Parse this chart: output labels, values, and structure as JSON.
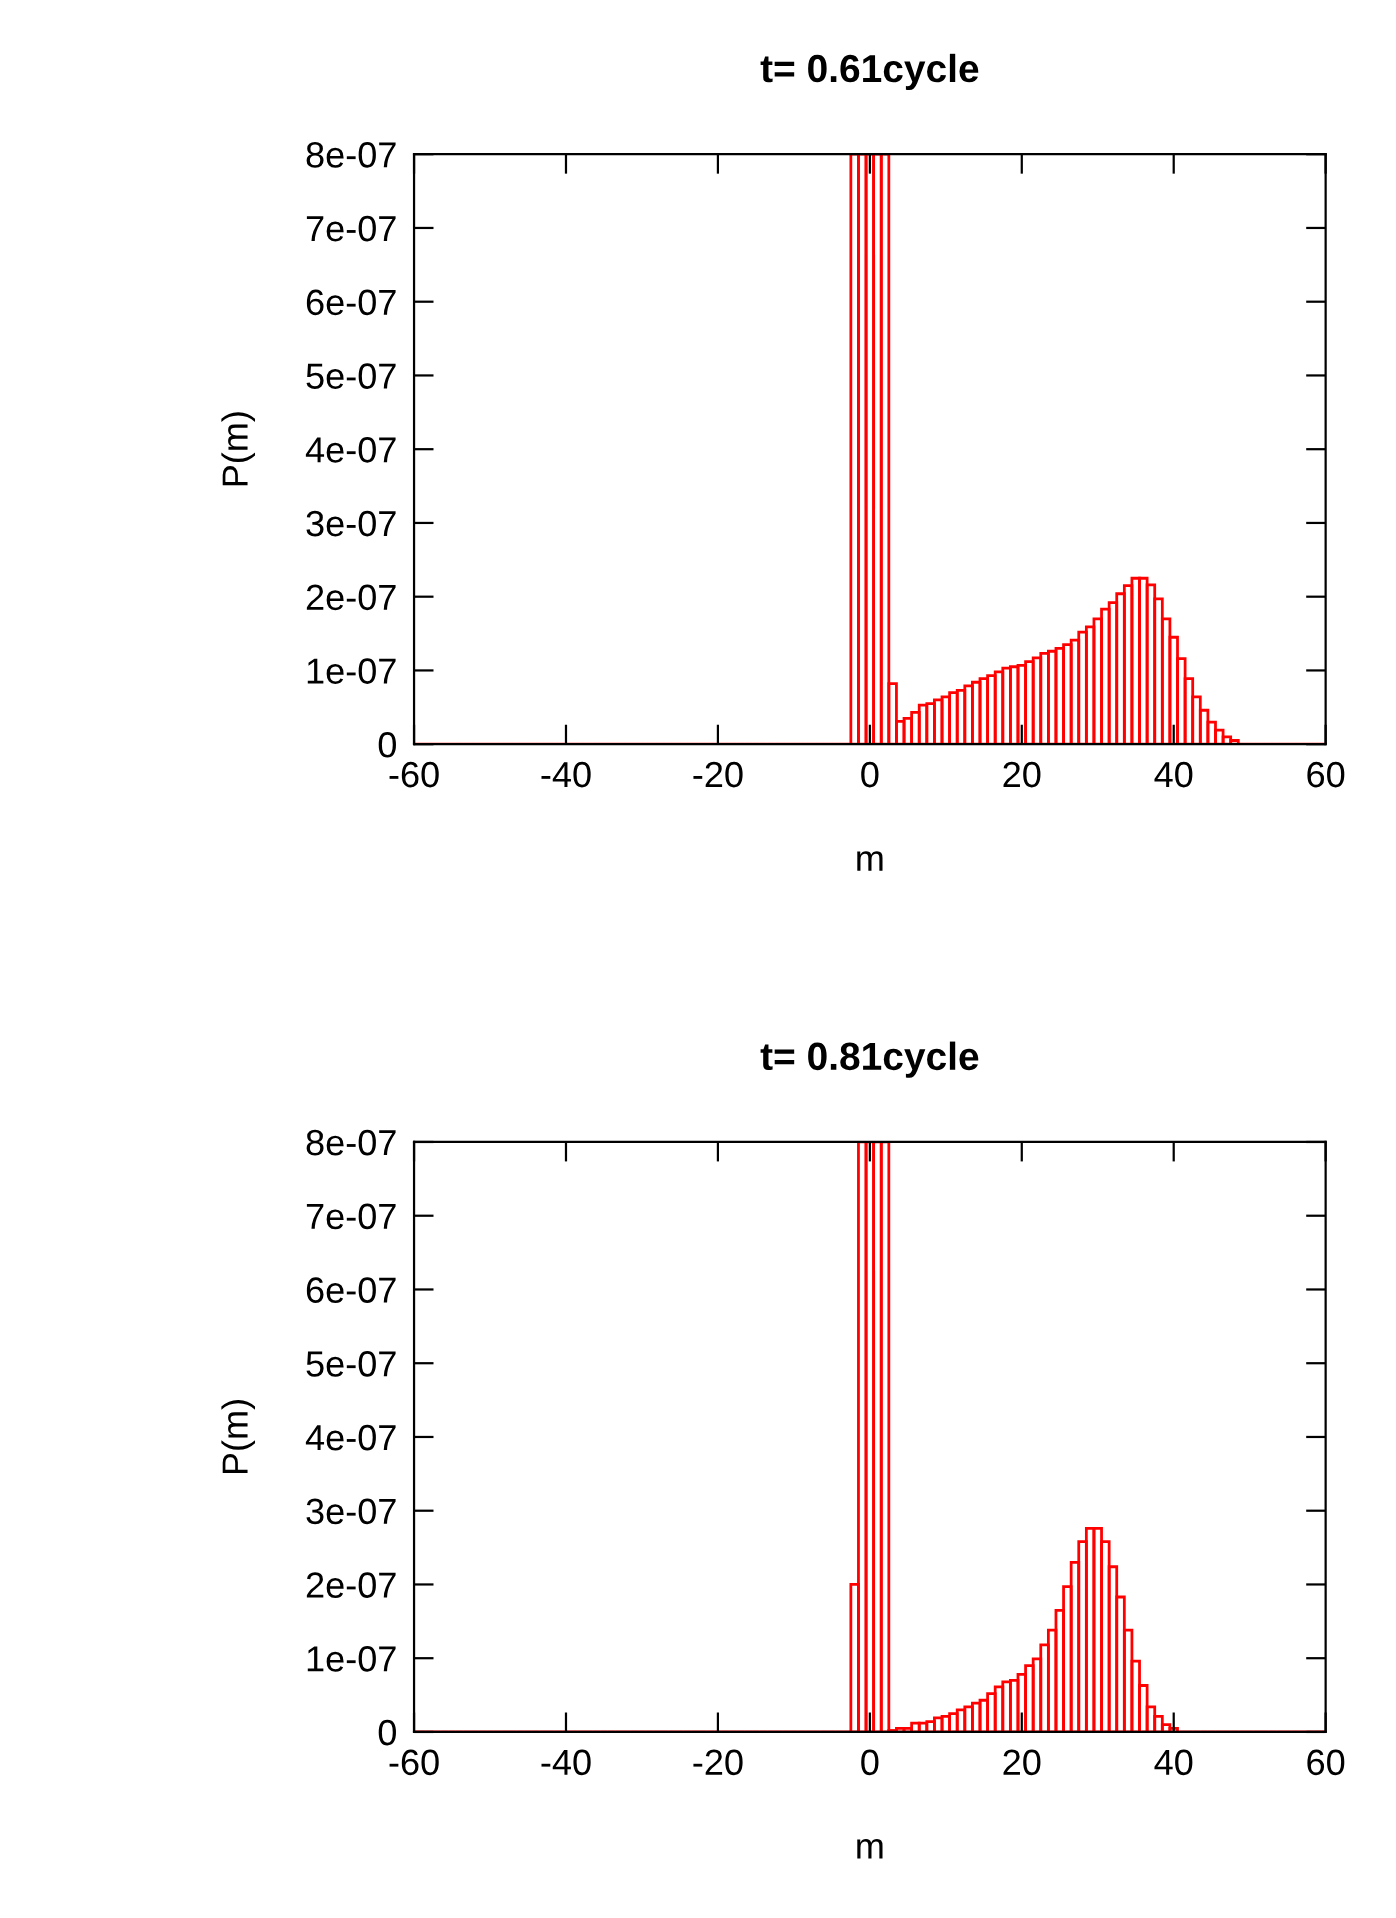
{
  "chart_data": [
    {
      "type": "bar",
      "title": "t= 0.61cycle",
      "xlabel": "m",
      "ylabel": "P(m)",
      "x": [
        -60,
        -59,
        -58,
        -57,
        -56,
        -55,
        -54,
        -53,
        -52,
        -51,
        -50,
        -49,
        -48,
        -47,
        -46,
        -45,
        -44,
        -43,
        -42,
        -41,
        -40,
        -39,
        -38,
        -37,
        -36,
        -35,
        -34,
        -33,
        -32,
        -31,
        -30,
        -29,
        -28,
        -27,
        -26,
        -25,
        -24,
        -23,
        -22,
        -21,
        -20,
        -19,
        -18,
        -17,
        -16,
        -15,
        -14,
        -13,
        -12,
        -11,
        -10,
        -9,
        -8,
        -7,
        -6,
        -5,
        -4,
        -3,
        -2,
        -1,
        0,
        1,
        2,
        3,
        4,
        5,
        6,
        7,
        8,
        9,
        10,
        11,
        12,
        13,
        14,
        15,
        16,
        17,
        18,
        19,
        20,
        21,
        22,
        23,
        24,
        25,
        26,
        27,
        28,
        29,
        30,
        31,
        32,
        33,
        34,
        35,
        36,
        37,
        38,
        39,
        40,
        41,
        42,
        43,
        44,
        45,
        46,
        47,
        48,
        49,
        50,
        51,
        52,
        53,
        54,
        55,
        56,
        57,
        58,
        59,
        60
      ],
      "series": [
        {
          "color": "#ff0000",
          "values": [
            0,
            0,
            0,
            0,
            0,
            0,
            0,
            0,
            0,
            0,
            0,
            0,
            0,
            0,
            0,
            0,
            0,
            0,
            0,
            0,
            0,
            0,
            0,
            0,
            0,
            0,
            0,
            0,
            0,
            0,
            0,
            0,
            0,
            0,
            0,
            0,
            0,
            0,
            0,
            0,
            0,
            0,
            0,
            0,
            0,
            0,
            0,
            0,
            0,
            0,
            0,
            0,
            0,
            0,
            0,
            0,
            0,
            0,
            8e-07,
            8e-07,
            8e-07,
            8e-07,
            8e-07,
            8.2e-08,
            3.1e-08,
            3.5e-08,
            4.3e-08,
            5.3e-08,
            5.5e-08,
            6e-08,
            6.4e-08,
            7e-08,
            7.3e-08,
            7.9e-08,
            8.4e-08,
            8.9e-08,
            9.3e-08,
            9.8e-08,
            1.03e-07,
            1.05e-07,
            1.07e-07,
            1.12e-07,
            1.17e-07,
            1.23e-07,
            1.26e-07,
            1.3e-07,
            1.35e-07,
            1.41e-07,
            1.52e-07,
            1.59e-07,
            1.7e-07,
            1.83e-07,
            1.92e-07,
            2.04e-07,
            2.15e-07,
            2.25e-07,
            2.25e-07,
            2.16e-07,
            1.97e-07,
            1.7e-07,
            1.45e-07,
            1.16e-07,
            8.9e-08,
            6.4e-08,
            4.6e-08,
            3e-08,
            1.9e-08,
            1e-08,
            5e-09,
            0,
            0,
            0,
            0,
            0,
            0,
            0,
            0,
            0,
            0,
            0,
            0
          ]
        }
      ],
      "xlim": [
        -60,
        60
      ],
      "xticks": [
        -60,
        -40,
        -20,
        0,
        20,
        40,
        60
      ],
      "ylim": [
        0,
        8e-07
      ],
      "yticks": [
        0,
        {
          "value": 1e-07,
          "label": "1e-07"
        },
        {
          "value": 2e-07,
          "label": "2e-07"
        },
        {
          "value": 3e-07,
          "label": "3e-07"
        },
        {
          "value": 4e-07,
          "label": "4e-07"
        },
        {
          "value": 5e-07,
          "label": "5e-07"
        },
        {
          "value": 6e-07,
          "label": "6e-07"
        },
        {
          "value": 7e-07,
          "label": "7e-07"
        },
        {
          "value": 8e-07,
          "label": "8e-07"
        }
      ]
    },
    {
      "type": "bar",
      "title": "t= 0.81cycle",
      "xlabel": "m",
      "ylabel": "P(m)",
      "x": [
        -60,
        -59,
        -58,
        -57,
        -56,
        -55,
        -54,
        -53,
        -52,
        -51,
        -50,
        -49,
        -48,
        -47,
        -46,
        -45,
        -44,
        -43,
        -42,
        -41,
        -40,
        -39,
        -38,
        -37,
        -36,
        -35,
        -34,
        -33,
        -32,
        -31,
        -30,
        -29,
        -28,
        -27,
        -26,
        -25,
        -24,
        -23,
        -22,
        -21,
        -20,
        -19,
        -18,
        -17,
        -16,
        -15,
        -14,
        -13,
        -12,
        -11,
        -10,
        -9,
        -8,
        -7,
        -6,
        -5,
        -4,
        -3,
        -2,
        -1,
        0,
        1,
        2,
        3,
        4,
        5,
        6,
        7,
        8,
        9,
        10,
        11,
        12,
        13,
        14,
        15,
        16,
        17,
        18,
        19,
        20,
        21,
        22,
        23,
        24,
        25,
        26,
        27,
        28,
        29,
        30,
        31,
        32,
        33,
        34,
        35,
        36,
        37,
        38,
        39,
        40,
        41,
        42,
        43,
        44,
        45,
        46,
        47,
        48,
        49,
        50,
        51,
        52,
        53,
        54,
        55,
        56,
        57,
        58,
        59,
        60
      ],
      "series": [
        {
          "color": "#ff0000",
          "values": [
            0,
            0,
            0,
            0,
            0,
            0,
            0,
            0,
            0,
            0,
            0,
            0,
            0,
            0,
            0,
            0,
            0,
            0,
            0,
            0,
            0,
            0,
            0,
            0,
            0,
            0,
            0,
            0,
            0,
            0,
            0,
            0,
            0,
            0,
            0,
            0,
            0,
            0,
            0,
            0,
            0,
            0,
            0,
            0,
            0,
            0,
            0,
            0,
            0,
            0,
            0,
            0,
            0,
            0,
            0,
            0,
            0,
            0,
            2e-07,
            8e-07,
            8e-07,
            8e-07,
            8e-07,
            2e-09,
            5e-09,
            5e-09,
            1.2e-08,
            1.2e-08,
            1.4e-08,
            1.9e-08,
            2.1e-08,
            2.5e-08,
            3e-08,
            3.4e-08,
            3.9e-08,
            4.3e-08,
            5.2e-08,
            6.1e-08,
            6.8e-08,
            7e-08,
            7.8e-08,
            9e-08,
            9.9e-08,
            1.18e-07,
            1.38e-07,
            1.65e-07,
            1.97e-07,
            2.3e-07,
            2.58e-07,
            2.76e-07,
            2.76e-07,
            2.58e-07,
            2.24e-07,
            1.83e-07,
            1.38e-07,
            9.6e-08,
            6.3e-08,
            3.4e-08,
            2.1e-08,
            1e-08,
            5e-09,
            0,
            0,
            0,
            0,
            0,
            0,
            0,
            0,
            0,
            0,
            0,
            0,
            0,
            0,
            0,
            0,
            0,
            0,
            0,
            0
          ]
        }
      ],
      "xlim": [
        -60,
        60
      ],
      "xticks": [
        -60,
        -40,
        -20,
        0,
        20,
        40,
        60
      ],
      "ylim": [
        0,
        8e-07
      ],
      "yticks": [
        0,
        {
          "value": 1e-07,
          "label": "1e-07"
        },
        {
          "value": 2e-07,
          "label": "2e-07"
        },
        {
          "value": 3e-07,
          "label": "3e-07"
        },
        {
          "value": 4e-07,
          "label": "4e-07"
        },
        {
          "value": 5e-07,
          "label": "5e-07"
        },
        {
          "value": 6e-07,
          "label": "6e-07"
        },
        {
          "value": 7e-07,
          "label": "7e-07"
        },
        {
          "value": 8e-07,
          "label": "8e-07"
        }
      ]
    }
  ]
}
